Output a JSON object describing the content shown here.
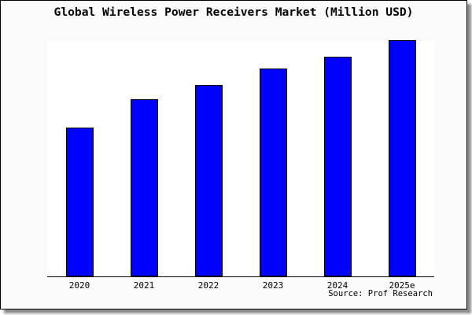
{
  "title": "Global Wireless Power Receivers Market (Million USD)",
  "source_credit": "Source: Prof Research",
  "colors": {
    "bar_fill": "#0000ff",
    "bar_border": "#000000",
    "figure_bg": "#fafafa",
    "plot_bg": "#ffffff",
    "frame_border": "#000000",
    "axis": "#000000",
    "text": "#000000"
  },
  "chart_data": {
    "type": "bar",
    "title": "Global Wireless Power Receivers Market (Million USD)",
    "categories": [
      "2020",
      "2021",
      "2022",
      "2023",
      "2024",
      "2025e"
    ],
    "values": [
      63,
      75,
      81,
      88,
      93,
      100
    ],
    "values_note": "No y-axis ticks or data labels shown; values estimated relative to tallest bar (2025e = 100)",
    "xlabel": "",
    "ylabel": "",
    "ylim": [
      0,
      100
    ],
    "grid": false,
    "legend": false,
    "bar_count": 6,
    "annotations": [
      "Source: Prof Research"
    ]
  }
}
